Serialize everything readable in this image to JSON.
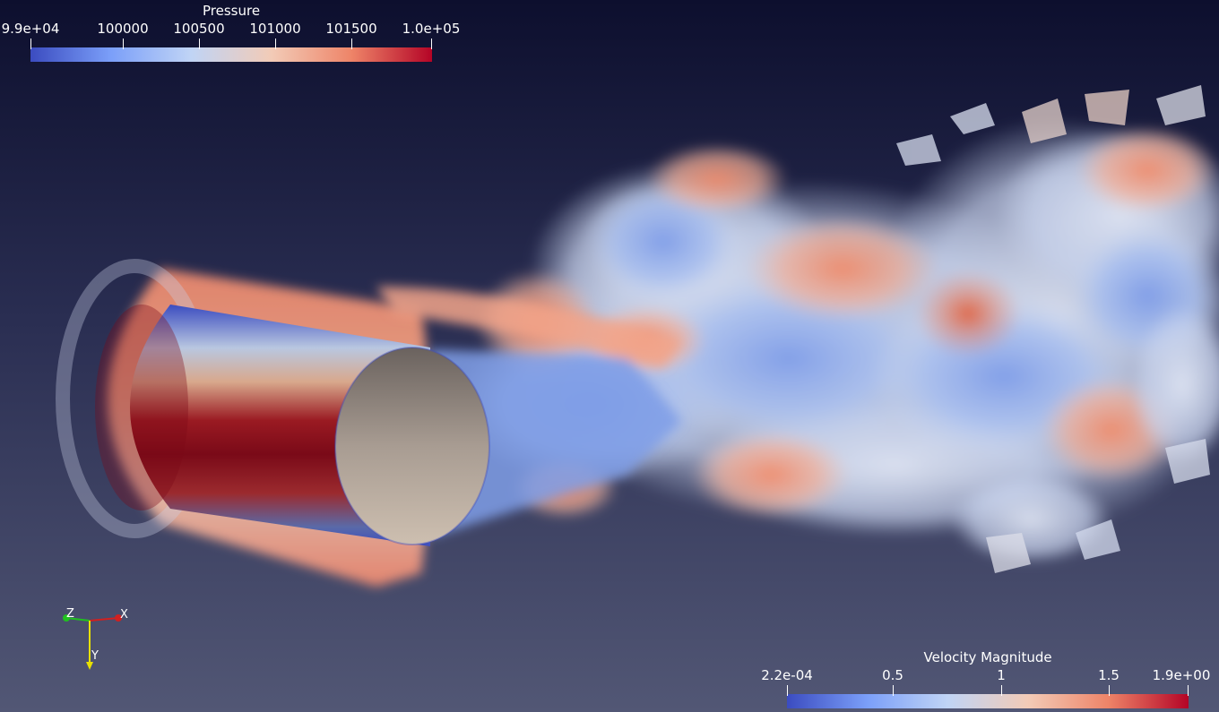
{
  "pressure_colorbar": {
    "title": "Pressure",
    "ticks": [
      "9.9e+04",
      "100000",
      "100500",
      "101000",
      "101500",
      "1.0e+05"
    ]
  },
  "velocity_colorbar": {
    "title": "Velocity Magnitude",
    "ticks": [
      "2.2e-04",
      "0.5",
      "1",
      "1.5",
      "1.9e+00"
    ]
  },
  "orientation_axes": {
    "x_label": "X",
    "y_label": "Y",
    "z_label": "Z",
    "x_color": "#d02020",
    "y_color": "#e8e000",
    "z_color": "#20c020"
  },
  "colormap": {
    "low": "#3b4cc0",
    "mid": "#dddddd",
    "high": "#b40426"
  }
}
